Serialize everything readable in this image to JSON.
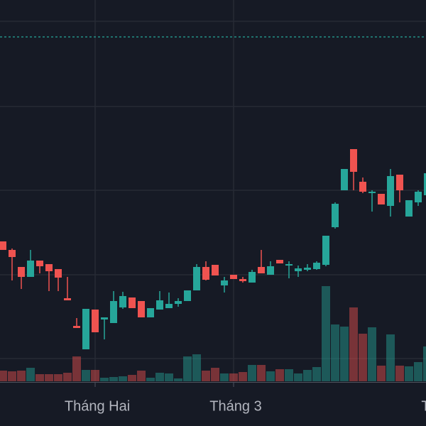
{
  "chart_data": {
    "type": "candlestick",
    "categories": [
      null,
      null,
      null,
      null,
      null,
      null,
      null,
      null,
      null,
      null,
      "Tháng Hai",
      null,
      null,
      null,
      null,
      null,
      null,
      null,
      null,
      null,
      null,
      null,
      null,
      null,
      null,
      "Tháng 3",
      null,
      null,
      null,
      null,
      null,
      null,
      null,
      null,
      null,
      null,
      null,
      null,
      null,
      null,
      null,
      null,
      null,
      null,
      null,
      null,
      "Th"
    ],
    "open": [
      200,
      188,
      164,
      150,
      173,
      168,
      161,
      120,
      81,
      48,
      104,
      90,
      85,
      107,
      121,
      116,
      93,
      104,
      106,
      112,
      116,
      131,
      164,
      167,
      138,
      153,
      147,
      142,
      164,
      153,
      174,
      166,
      158,
      160,
      161,
      167,
      220,
      272,
      330,
      284,
      268,
      267,
      250,
      294,
      235,
      255,
      265
    ],
    "high": [
      200,
      190,
      164,
      188,
      173,
      168,
      161,
      150,
      92,
      105,
      104,
      93,
      130,
      129,
      121,
      116,
      106,
      130,
      128,
      120,
      131,
      168,
      172,
      167,
      150,
      153,
      150,
      160,
      188,
      172,
      174,
      172,
      166,
      168,
      172,
      208,
      255,
      302,
      330,
      290,
      272,
      267,
      302,
      294,
      258,
      272,
      296
    ],
    "low": [
      188,
      145,
      133,
      150,
      155,
      130,
      130,
      117,
      78,
      48,
      72,
      62,
      85,
      105,
      106,
      93,
      93,
      104,
      106,
      108,
      116,
      131,
      145,
      152,
      128,
      147,
      142,
      142,
      155,
      153,
      169,
      148,
      150,
      158,
      160,
      165,
      218,
      272,
      272,
      268,
      242,
      252,
      235,
      255,
      235,
      250,
      265
    ],
    "close": [
      188,
      178,
      150,
      173,
      165,
      158,
      149,
      117,
      78,
      105,
      72,
      93,
      116,
      123,
      106,
      93,
      106,
      117,
      112,
      116,
      131,
      164,
      146,
      152,
      145,
      147,
      144,
      157,
      155,
      165,
      169,
      168,
      162,
      163,
      170,
      208,
      253,
      302,
      298,
      270,
      270,
      252,
      292,
      272,
      258,
      270,
      296
    ],
    "volume": [
      15,
      14,
      15,
      19,
      10,
      10,
      10,
      12,
      35,
      16,
      16,
      5,
      6,
      7,
      9,
      15,
      5,
      12,
      11,
      4,
      35,
      38,
      15,
      19,
      11,
      11,
      13,
      23,
      23,
      14,
      17,
      17,
      11,
      16,
      20,
      134,
      80,
      77,
      104,
      67,
      76,
      22,
      66,
      22,
      21,
      27,
      49
    ],
    "up_color": "#26a69a",
    "down_color": "#ef5350",
    "ylim": [
      0,
      540
    ],
    "yticks": [
      35,
      153,
      272,
      390,
      510
    ],
    "grid": true,
    "vlim": [
      0,
      537
    ],
    "price_line": 488
  }
}
